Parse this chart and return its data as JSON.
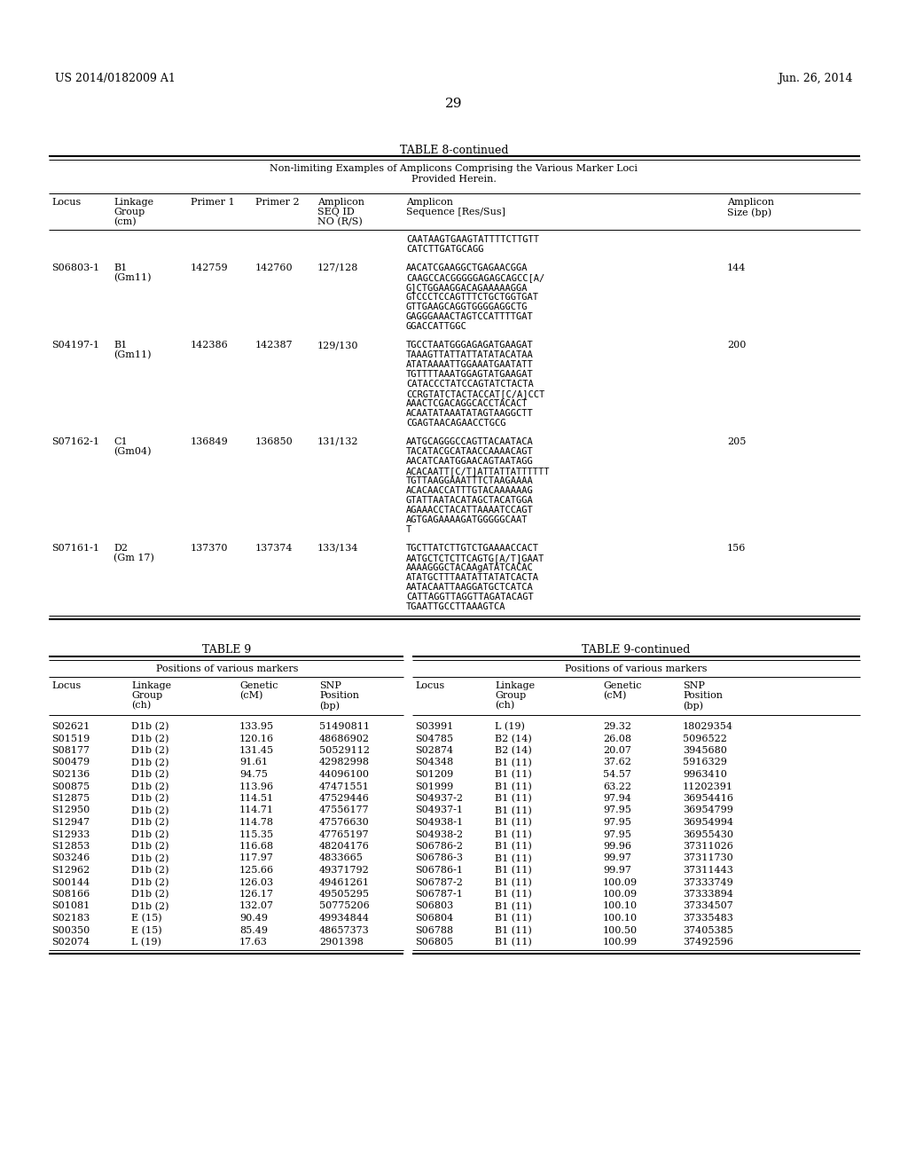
{
  "page_header_left": "US 2014/0182009 A1",
  "page_header_right": "Jun. 26, 2014",
  "page_number": "29",
  "table8_title": "TABLE 8-continued",
  "table8_subtitle": "Non-limiting Examples of Amplicons Comprising the Various Marker Loci\nProvided Herein.",
  "table8_col_headers": [
    [
      "Locus",
      "",
      ""
    ],
    [
      "Linkage",
      "Group",
      "(cm)"
    ],
    [
      "Primer 1",
      "",
      ""
    ],
    [
      "Primer 2",
      "",
      ""
    ],
    [
      "Amplicon",
      "SEQ ID",
      "NO (R/S)"
    ],
    [
      "Amplicon",
      "Sequence [Res/Sus]",
      ""
    ],
    [
      "Amplicon",
      "Size (bp)",
      ""
    ]
  ],
  "table8_rows": [
    [
      "",
      "",
      "",
      "",
      "",
      "CAATAAGTGAAGTATTTTCTTGTT\nCATCTTGATGCAGG",
      ""
    ],
    [
      "S06803-1",
      "B1\n(Gm11)",
      "142759",
      "142760",
      "127/128",
      "AACATCGAAGGCTGAGAACGGA\nCAAGCCACGGGGGAGAGCAGCC[A/\nG]CTGGAAGGACAGAAAAAGGA\nGTCCCTCCAGTTTCTGCTGGTGAT\nGTTGAAGCAGGTGGGGAGGCTG\nGAGGGAAACTAGTCCATTTTGAT\nGGACCATTGGC",
      "144"
    ],
    [
      "S04197-1",
      "B1\n(Gm11)",
      "142386",
      "142387",
      "129/130",
      "TGCCTAATGGGAGAGATGAAGAT\nTAAAGTTATTATTATATACATAA\nATATAAAATTGGAAATGAATATT\nTGTTTTAAATGGAGTATGAAGAT\nCATACCCTATCCAGTATCTACTA\nCCRGTATCTACTACCAT[C/A]CCT\nAAACTCGACAGGCACCTACACT\nACAATATAAATATAGTAAGGCTT\nCGAGTAACAGAACCTGCG",
      "200"
    ],
    [
      "S07162-1",
      "C1\n(Gm04)",
      "136849",
      "136850",
      "131/132",
      "AATGCAGGGCCAGTTACAATACA\nTACATACGCATAACCAAAACAGT\nAACATCAATGGAACAGTAATAGG\nACACAATT[C/T]ATTATTATTTTTT\nTGTTAAGGAAATTTCTAAGAAAA\nACACAACCATTTGTACAAAAAAG\nGTATTAATACATAGCTACATGGA\nAGAAACCTACATTAAAATCCAGT\nAGTGAGAAAAGATGGGGGCAAT\nT",
      "205"
    ],
    [
      "S07161-1",
      "D2\n(Gm 17)",
      "137370",
      "137374",
      "133/134",
      "TGCTTATCTTGTCTGAAAACCACT\nAATGCTCTCTTCAGTG[A/T]GAAT\nAAAAGGGCTACAAgATATCACAC\nATATGCTTTAATATTATATCACTA\nAATACAATTAAGGATGCTCATCA\nCATTAGGTTAGGTTAGATACAGT\nTGAATTGCCTTAAAGTCA",
      "156"
    ]
  ],
  "table9_title": "TABLE 9",
  "table9cont_title": "TABLE 9-continued",
  "table9_subtitle": "Positions of various markers",
  "table9_col_headers": [
    [
      "Locus",
      "",
      ""
    ],
    [
      "Linkage",
      "Group",
      "(ch)"
    ],
    [
      "Genetic",
      "(cM)",
      ""
    ],
    [
      "SNP",
      "Position",
      "(bp)"
    ]
  ],
  "table9_left_rows": [
    [
      "S02621",
      "D1b (2)",
      "133.95",
      "51490811"
    ],
    [
      "S01519",
      "D1b (2)",
      "120.16",
      "48686902"
    ],
    [
      "S08177",
      "D1b (2)",
      "131.45",
      "50529112"
    ],
    [
      "S00479",
      "D1b (2)",
      "91.61",
      "42982998"
    ],
    [
      "S02136",
      "D1b (2)",
      "94.75",
      "44096100"
    ],
    [
      "S00875",
      "D1b (2)",
      "113.96",
      "47471551"
    ],
    [
      "S12875",
      "D1b (2)",
      "114.51",
      "47529446"
    ],
    [
      "S12950",
      "D1b (2)",
      "114.71",
      "47556177"
    ],
    [
      "S12947",
      "D1b (2)",
      "114.78",
      "47576630"
    ],
    [
      "S12933",
      "D1b (2)",
      "115.35",
      "47765197"
    ],
    [
      "S12853",
      "D1b (2)",
      "116.68",
      "48204176"
    ],
    [
      "S03246",
      "D1b (2)",
      "117.97",
      "4833665"
    ],
    [
      "S12962",
      "D1b (2)",
      "125.66",
      "49371792"
    ],
    [
      "S00144",
      "D1b (2)",
      "126.03",
      "49461261"
    ],
    [
      "S08166",
      "D1b (2)",
      "126.17",
      "49505295"
    ],
    [
      "S01081",
      "D1b (2)",
      "132.07",
      "50775206"
    ],
    [
      "S02183",
      "E (15)",
      "90.49",
      "49934844"
    ],
    [
      "S00350",
      "E (15)",
      "85.49",
      "48657373"
    ],
    [
      "S02074",
      "L (19)",
      "17.63",
      "2901398"
    ]
  ],
  "table9_right_rows": [
    [
      "S03991",
      "L (19)",
      "29.32",
      "18029354"
    ],
    [
      "S04785",
      "B2 (14)",
      "26.08",
      "5096522"
    ],
    [
      "S02874",
      "B2 (14)",
      "20.07",
      "3945680"
    ],
    [
      "S04348",
      "B1 (11)",
      "37.62",
      "5916329"
    ],
    [
      "S01209",
      "B1 (11)",
      "54.57",
      "9963410"
    ],
    [
      "S01999",
      "B1 (11)",
      "63.22",
      "11202391"
    ],
    [
      "S04937-2",
      "B1 (11)",
      "97.94",
      "36954416"
    ],
    [
      "S04937-1",
      "B1 (11)",
      "97.95",
      "36954799"
    ],
    [
      "S04938-1",
      "B1 (11)",
      "97.95",
      "36954994"
    ],
    [
      "S04938-2",
      "B1 (11)",
      "97.95",
      "36955430"
    ],
    [
      "S06786-2",
      "B1 (11)",
      "99.96",
      "37311026"
    ],
    [
      "S06786-3",
      "B1 (11)",
      "99.97",
      "37311730"
    ],
    [
      "S06786-1",
      "B1 (11)",
      "99.97",
      "37311443"
    ],
    [
      "S06787-2",
      "B1 (11)",
      "100.09",
      "37333749"
    ],
    [
      "S06787-1",
      "B1 (11)",
      "100.09",
      "37333894"
    ],
    [
      "S06803",
      "B1 (11)",
      "100.10",
      "37334507"
    ],
    [
      "S06804",
      "B1 (11)",
      "100.10",
      "37335483"
    ],
    [
      "S06788",
      "B1 (11)",
      "100.50",
      "37405385"
    ],
    [
      "S06805",
      "B1 (11)",
      "100.99",
      "37492596"
    ]
  ]
}
